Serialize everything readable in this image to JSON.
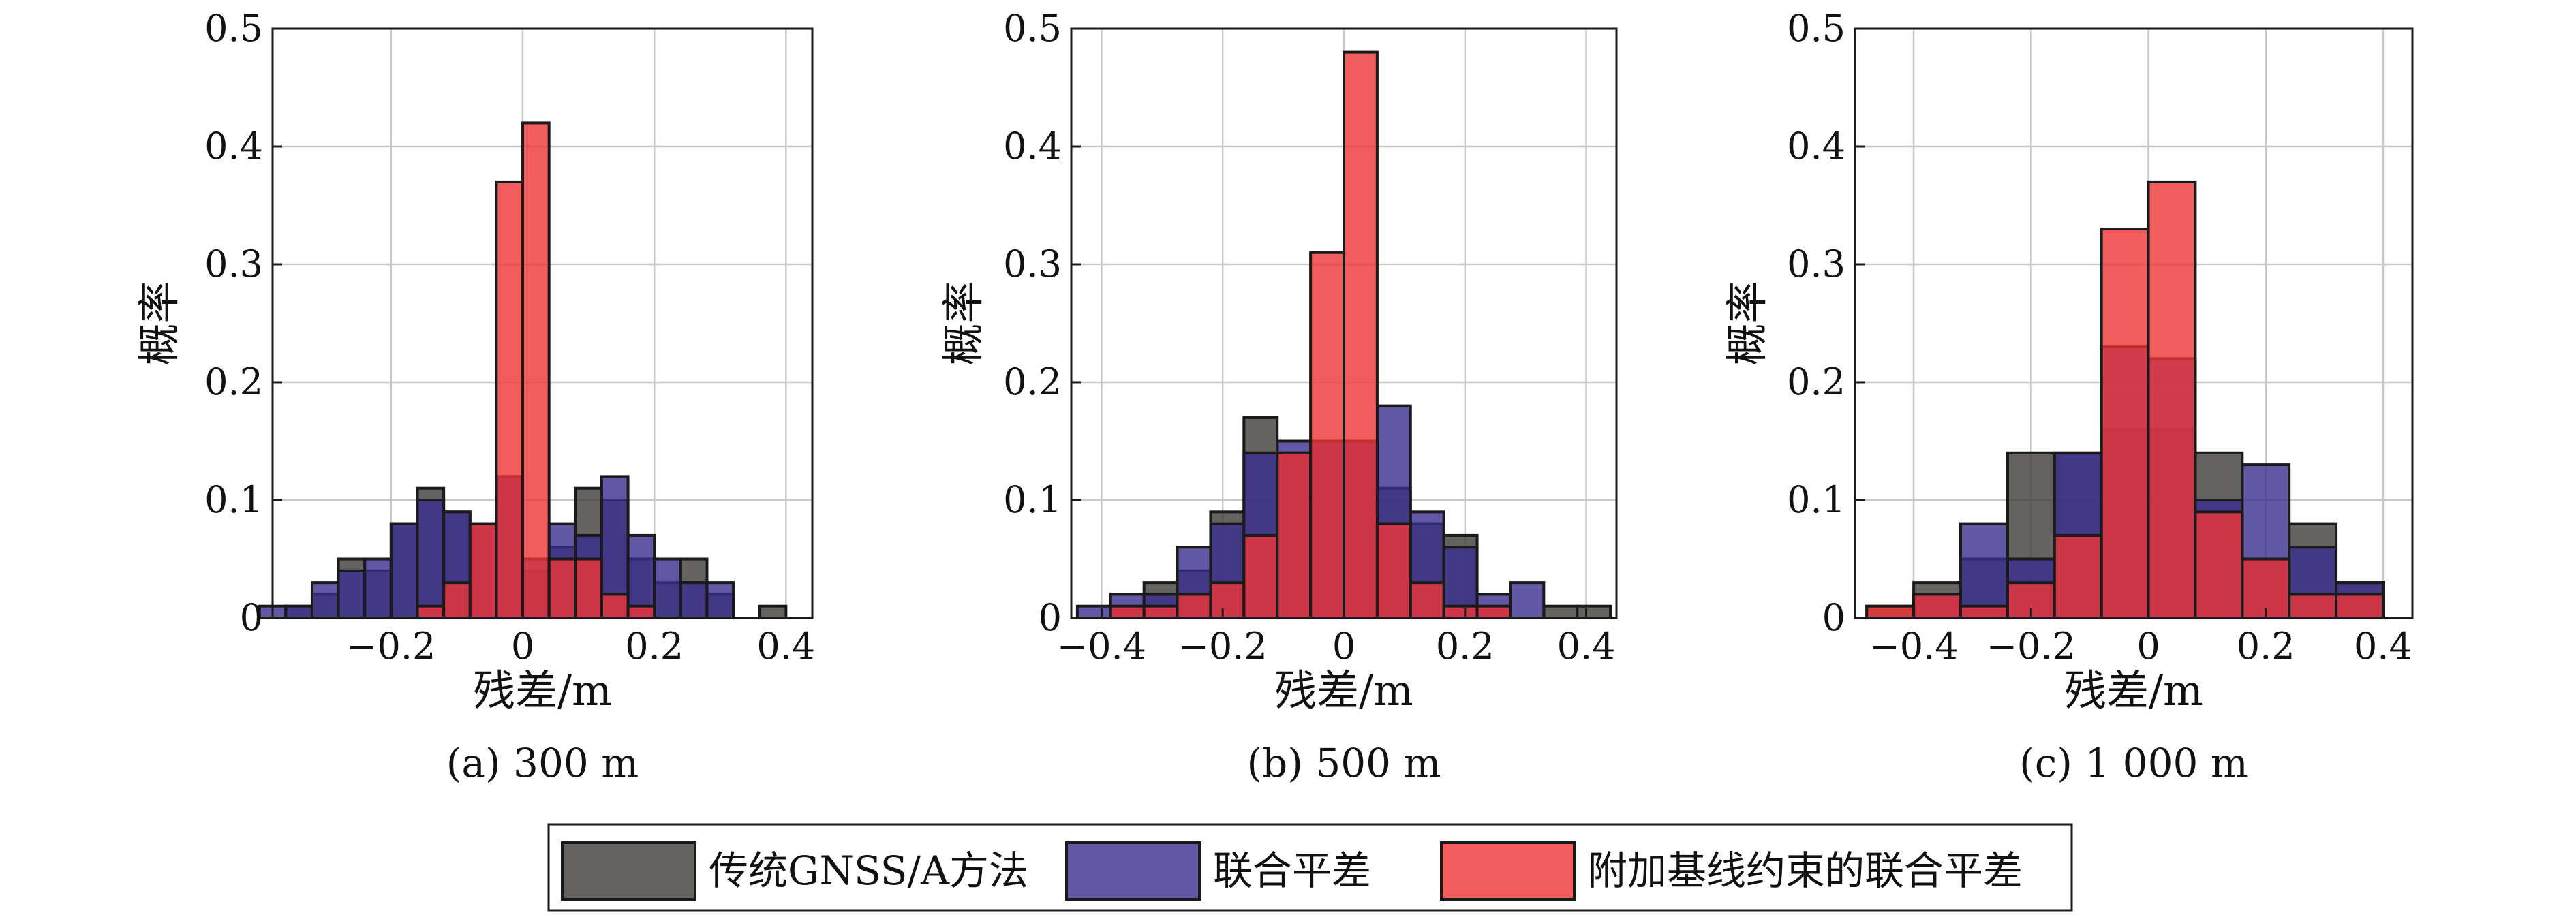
{
  "colors": {
    "traditional": "#3f3c38",
    "joint": "#3a2d8f",
    "constrained": "#ee3535",
    "gridline": "#c8c8c8",
    "border": "#1a1a1a"
  },
  "legend": {
    "items": [
      {
        "name": "传统GNSS/A方法",
        "color": "#3f3c38"
      },
      {
        "name": "联合平差",
        "color": "#3a2d8f"
      },
      {
        "name": "附加基线约束的联合平差",
        "color": "#ee3535"
      }
    ]
  },
  "chart_data": [
    {
      "type": "bar",
      "caption": "(a) 300 m",
      "xlabel": "残差/m",
      "ylabel": "概率",
      "xlim": [
        -0.38,
        0.44
      ],
      "ylim": [
        0,
        0.5
      ],
      "xticks": [
        -0.2,
        0,
        0.2,
        0.4
      ],
      "xtick_labels": [
        "−0.2",
        "0",
        "0.2",
        "0.4"
      ],
      "yticks": [
        0,
        0.1,
        0.2,
        0.3,
        0.4,
        0.5
      ],
      "ytick_labels": [
        "0",
        "0.1",
        "0.2",
        "0.3",
        "0.4",
        "0.5"
      ],
      "grid": true,
      "series": [
        {
          "name": "传统GNSS/A方法",
          "bin_width": 0.04,
          "x": [
            -0.34,
            -0.3,
            -0.26,
            -0.22,
            -0.18,
            -0.14,
            -0.1,
            -0.06,
            -0.02,
            0.02,
            0.06,
            0.1,
            0.14,
            0.18,
            0.22,
            0.26,
            0.3,
            0.34,
            0.38
          ],
          "values": [
            0.01,
            0.02,
            0.05,
            0.04,
            0.08,
            0.11,
            0.09,
            0.08,
            0.12,
            0.04,
            0.06,
            0.11,
            0.1,
            0.05,
            0.03,
            0.05,
            0.02,
            0.0,
            0.01
          ]
        },
        {
          "name": "联合平差",
          "bin_width": 0.04,
          "x": [
            -0.38,
            -0.34,
            -0.3,
            -0.26,
            -0.22,
            -0.18,
            -0.14,
            -0.1,
            -0.06,
            -0.02,
            0.02,
            0.06,
            0.1,
            0.14,
            0.18,
            0.22,
            0.26,
            0.3
          ],
          "values": [
            0.01,
            0.01,
            0.03,
            0.04,
            0.05,
            0.08,
            0.1,
            0.09,
            0.08,
            0.12,
            0.05,
            0.08,
            0.07,
            0.12,
            0.07,
            0.05,
            0.03,
            0.03
          ]
        },
        {
          "name": "附加基线约束的联合平差",
          "bin_width": 0.04,
          "x": [
            -0.14,
            -0.1,
            -0.06,
            -0.02,
            0.02,
            0.06,
            0.1,
            0.14,
            0.18
          ],
          "values": [
            0.01,
            0.03,
            0.08,
            0.37,
            0.42,
            0.05,
            0.05,
            0.02,
            0.01
          ]
        }
      ]
    },
    {
      "type": "bar",
      "caption": "(b) 500 m",
      "xlabel": "残差/m",
      "ylabel": "概率",
      "xlim": [
        -0.45,
        0.45
      ],
      "ylim": [
        0,
        0.5
      ],
      "xticks": [
        -0.4,
        -0.2,
        0,
        0.2,
        0.4
      ],
      "xtick_labels": [
        "−0.4",
        "−0.2",
        "0",
        "0.2",
        "0.4"
      ],
      "yticks": [
        0,
        0.1,
        0.2,
        0.3,
        0.4,
        0.5
      ],
      "ytick_labels": [
        "0",
        "0.1",
        "0.2",
        "0.3",
        "0.4",
        "0.5"
      ],
      "grid": true,
      "series": [
        {
          "name": "传统GNSS/A方法",
          "bin_width": 0.055,
          "x": [
            -0.4125,
            -0.3575,
            -0.3025,
            -0.2475,
            -0.1925,
            -0.1375,
            -0.0825,
            -0.0275,
            0.0275,
            0.0825,
            0.1375,
            0.1925,
            0.2475,
            0.3025,
            0.3575,
            0.4125
          ],
          "values": [
            0.0,
            0.01,
            0.03,
            0.04,
            0.09,
            0.17,
            0.14,
            0.15,
            0.15,
            0.11,
            0.08,
            0.07,
            0.01,
            0.0,
            0.01,
            0.01
          ]
        },
        {
          "name": "联合平差",
          "bin_width": 0.055,
          "x": [
            -0.4125,
            -0.3575,
            -0.3025,
            -0.2475,
            -0.1925,
            -0.1375,
            -0.0825,
            -0.0275,
            0.0275,
            0.0825,
            0.1375,
            0.1925,
            0.2475,
            0.3025,
            0.3575,
            0.4125
          ],
          "values": [
            0.01,
            0.02,
            0.02,
            0.06,
            0.08,
            0.14,
            0.15,
            0.15,
            0.15,
            0.18,
            0.09,
            0.06,
            0.02,
            0.03,
            0.0,
            0.0
          ]
        },
        {
          "name": "附加基线约束的联合平差",
          "bin_width": 0.055,
          "x": [
            -0.3575,
            -0.3025,
            -0.2475,
            -0.1925,
            -0.1375,
            -0.0825,
            -0.0275,
            0.0275,
            0.0825,
            0.1375,
            0.1925,
            0.2475
          ],
          "values": [
            0.01,
            0.01,
            0.02,
            0.03,
            0.07,
            0.14,
            0.31,
            0.48,
            0.08,
            0.03,
            0.01,
            0.01
          ]
        }
      ]
    },
    {
      "type": "bar",
      "caption": "(c) 1 000 m",
      "xlabel": "残差/m",
      "ylabel": "概率",
      "xlim": [
        -0.5,
        0.45
      ],
      "ylim": [
        0,
        0.5
      ],
      "xticks": [
        -0.4,
        -0.2,
        0,
        0.2,
        0.4
      ],
      "xtick_labels": [
        "−0.4",
        "−0.2",
        "0",
        "0.2",
        "0.4"
      ],
      "yticks": [
        0,
        0.1,
        0.2,
        0.3,
        0.4,
        0.5
      ],
      "ytick_labels": [
        "0",
        "0.1",
        "0.2",
        "0.3",
        "0.4",
        "0.5"
      ],
      "grid": true,
      "series": [
        {
          "name": "传统GNSS/A方法",
          "bin_width": 0.08,
          "x": [
            -0.44,
            -0.36,
            -0.28,
            -0.2,
            -0.12,
            -0.04,
            0.04,
            0.12,
            0.2,
            0.28,
            0.36
          ],
          "values": [
            0.01,
            0.03,
            0.05,
            0.14,
            0.14,
            0.16,
            0.16,
            0.14,
            0.05,
            0.08,
            0.03
          ]
        },
        {
          "name": "联合平差",
          "bin_width": 0.08,
          "x": [
            -0.44,
            -0.36,
            -0.28,
            -0.2,
            -0.12,
            -0.04,
            0.04,
            0.12,
            0.2,
            0.28,
            0.36
          ],
          "values": [
            0.0,
            0.02,
            0.08,
            0.05,
            0.14,
            0.23,
            0.22,
            0.1,
            0.13,
            0.06,
            0.03
          ]
        },
        {
          "name": "附加基线约束的联合平差",
          "bin_width": 0.08,
          "x": [
            -0.44,
            -0.36,
            -0.28,
            -0.2,
            -0.12,
            -0.04,
            0.04,
            0.12,
            0.2,
            0.28,
            0.36
          ],
          "values": [
            0.01,
            0.02,
            0.01,
            0.03,
            0.07,
            0.33,
            0.37,
            0.09,
            0.05,
            0.02,
            0.02
          ]
        }
      ]
    }
  ]
}
